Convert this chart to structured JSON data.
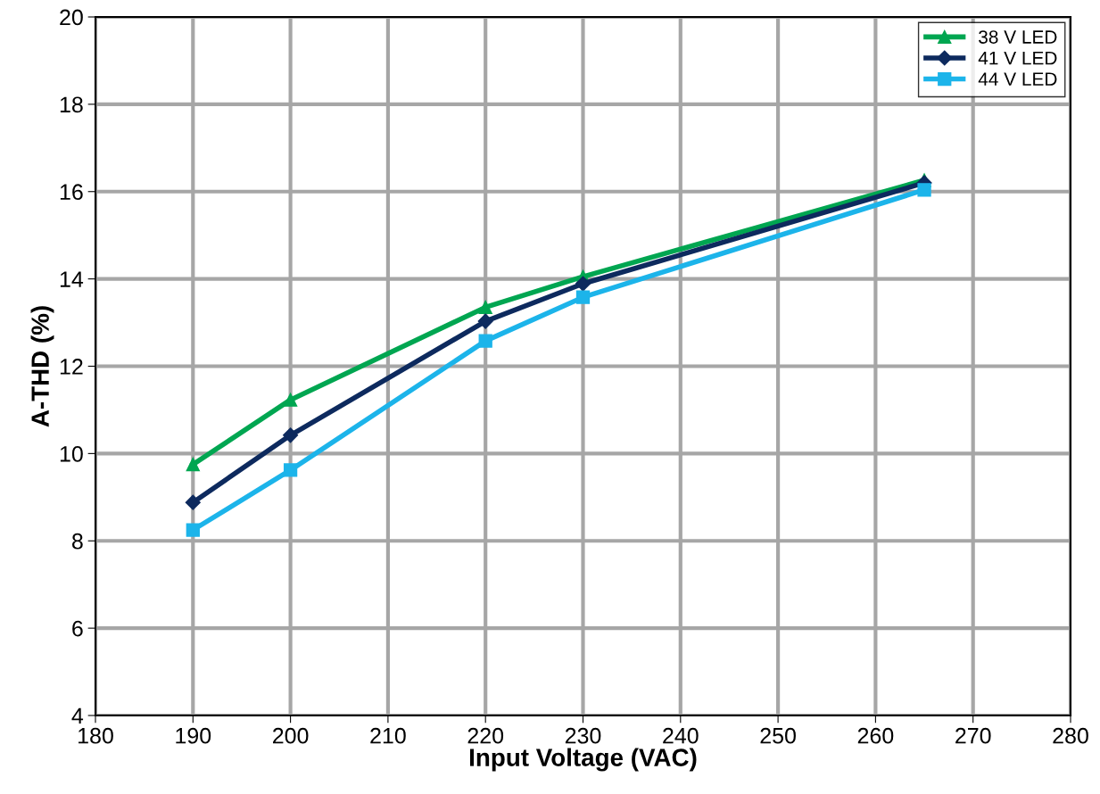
{
  "chart_data": {
    "type": "line",
    "xlabel": "Input Voltage (VAC)",
    "ylabel": "A-THD (%)",
    "x": [
      190,
      200,
      220,
      230,
      265
    ],
    "series": [
      {
        "name": "38 V LED",
        "color": "#00a651",
        "marker": "triangle",
        "values": [
          9.75,
          11.23,
          13.35,
          14.05,
          16.26
        ]
      },
      {
        "name": "41 V LED",
        "color": "#0d2a5e",
        "marker": "diamond",
        "values": [
          8.88,
          10.42,
          13.03,
          13.89,
          16.2
        ]
      },
      {
        "name": "44 V LED",
        "color": "#1cb4ea",
        "marker": "square",
        "values": [
          8.25,
          9.62,
          12.58,
          13.58,
          16.04
        ]
      }
    ],
    "xlim": [
      180,
      280
    ],
    "xticks": [
      180,
      190,
      200,
      210,
      220,
      230,
      240,
      250,
      260,
      270,
      280
    ],
    "ylim": [
      4,
      20
    ],
    "yticks": [
      4,
      6,
      8,
      10,
      12,
      14,
      16,
      18,
      20
    ],
    "grid": true,
    "legend": "top right",
    "line_style": "solid"
  }
}
